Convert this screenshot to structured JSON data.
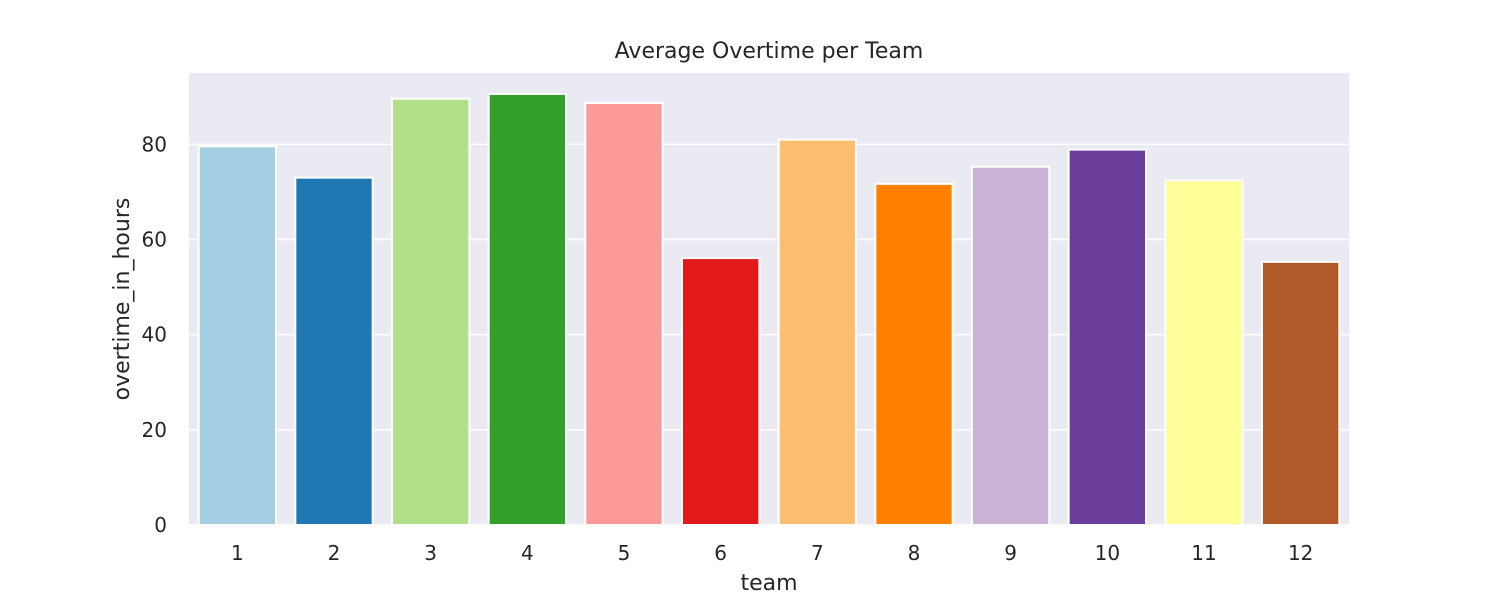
{
  "chart_data": {
    "type": "bar",
    "title": "Average Overtime per Team",
    "xlabel": "team",
    "ylabel": "overtime_in_hours",
    "categories": [
      "1",
      "2",
      "3",
      "4",
      "5",
      "6",
      "7",
      "8",
      "9",
      "10",
      "11",
      "12"
    ],
    "values": [
      79.6,
      73.0,
      89.6,
      90.6,
      88.7,
      56.1,
      81.0,
      71.7,
      75.3,
      78.9,
      72.4,
      55.3
    ],
    "colors": [
      "#a6cee3",
      "#1f78b4",
      "#b2df8a",
      "#33a02c",
      "#fb9a99",
      "#e31a1c",
      "#fdbf6f",
      "#ff7f00",
      "#cab2d6",
      "#6a3d9a",
      "#ffff99",
      "#b15928"
    ],
    "yticks": [
      "0",
      "20",
      "40",
      "60",
      "80"
    ],
    "ylim": [
      0,
      95
    ],
    "grid": true,
    "style": {
      "plot_background": "#eaeaf2",
      "grid_color": "#ffffff"
    }
  }
}
